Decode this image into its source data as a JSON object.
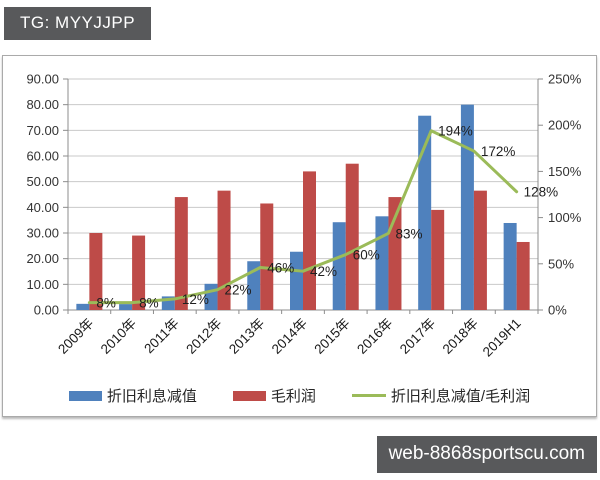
{
  "page": {
    "tg_badge": "TG: MYYJJPP",
    "watermark": "web-8868sportscu.com",
    "badge_bg": "#58595B"
  },
  "chart_data": {
    "type": "combo (bar + line)",
    "title": "",
    "categories": [
      "2009年",
      "2010年",
      "2011年",
      "2012年",
      "2013年",
      "2014年",
      "2015年",
      "2016年",
      "2017年",
      "2018年",
      "2019H1"
    ],
    "series": [
      {
        "name": "折旧利息减值",
        "type": "bar",
        "axis": "left",
        "color": "#4F81BD",
        "values": [
          2.4,
          2.3,
          5.3,
          10.2,
          19.0,
          22.7,
          34.2,
          36.5,
          75.7,
          80.0,
          33.9
        ]
      },
      {
        "name": "毛利润",
        "type": "bar",
        "axis": "left",
        "color": "#BE4B48",
        "values": [
          30.0,
          29.0,
          44.0,
          46.5,
          41.5,
          54.0,
          57.0,
          44.0,
          39.0,
          46.5,
          26.5
        ]
      },
      {
        "name": "折旧利息减值/毛利润",
        "type": "line",
        "axis": "right",
        "color": "#9BBB59",
        "values_percent": [
          8,
          8,
          12,
          22,
          46,
          42,
          60,
          83,
          194,
          172,
          128
        ],
        "point_labels": [
          "8%",
          "8%",
          "12%",
          "22%",
          "46%",
          "42%",
          "60%",
          "83%",
          "194%",
          "172%",
          "128%"
        ]
      }
    ],
    "left_axis": {
      "min": 0,
      "max": 90,
      "step": 10,
      "tick_labels_top_to_bottom": [
        "90.00",
        "80.00",
        "70.00",
        "60.00",
        "50.00",
        "40.00",
        "30.00",
        "20.00",
        "10.00",
        "0.00"
      ]
    },
    "right_axis": {
      "min": 0,
      "max": 250,
      "step": 50,
      "tick_labels_top_to_bottom": [
        "250%",
        "200%",
        "150%",
        "100%",
        "50%",
        "0%"
      ]
    },
    "grid": true,
    "legend_position": "bottom"
  }
}
